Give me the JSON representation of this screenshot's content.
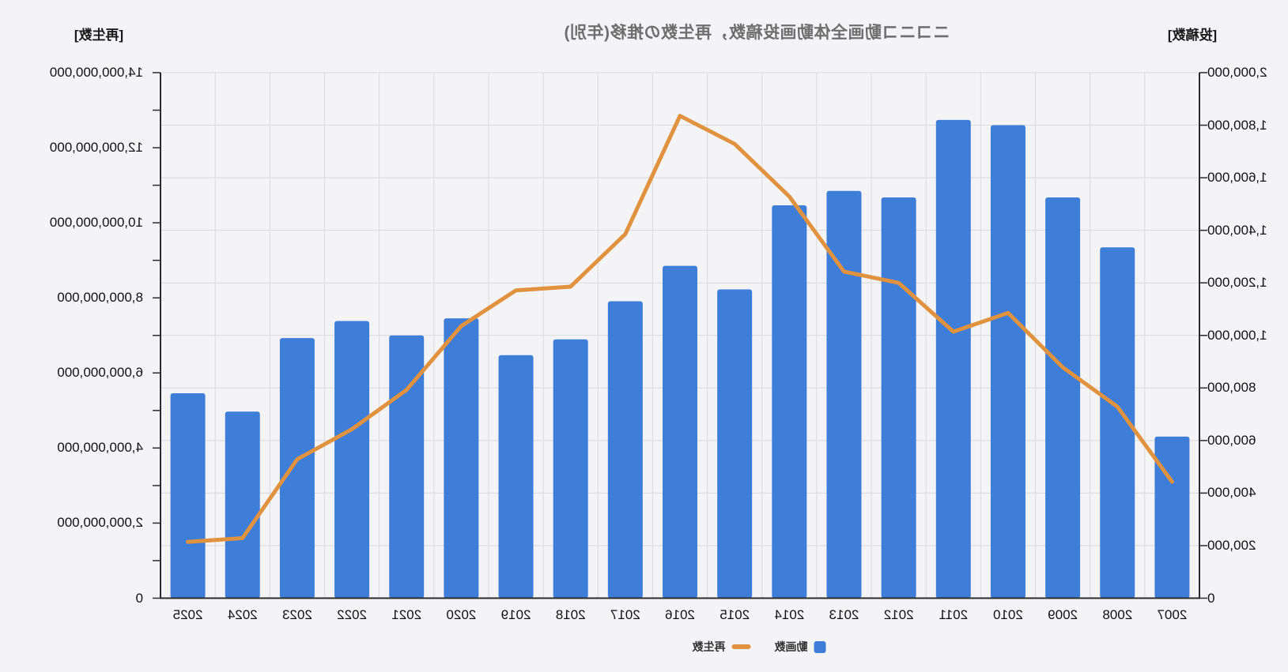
{
  "chart": {
    "title": "ニコニコ動画全体動画投稿数，再生数の推移(年別)",
    "legend": [
      {
        "label": "動画数",
        "swatch": "bar-square",
        "color": "#3E7DD8"
      },
      {
        "label": "再生数",
        "swatch": "line-dash",
        "color": "#E0923F"
      }
    ]
  },
  "chart_data": {
    "type": "bar+line",
    "title": "ニコニコ動画全体動画投稿数，再生数の推移(年別)",
    "categories": [
      "2007",
      "2008",
      "2009",
      "2010",
      "2011",
      "2012",
      "2013",
      "2014",
      "2015",
      "2016",
      "2017",
      "2018",
      "2019",
      "2020",
      "2021",
      "2022",
      "2023",
      "2024",
      "2025"
    ],
    "series": [
      {
        "name": "動画数",
        "type": "bar",
        "axis": "posts",
        "color": "#3E7DD8",
        "values": [
          615000,
          1335000,
          1525000,
          1800000,
          1820000,
          1525000,
          1550000,
          1495000,
          1175000,
          1265000,
          1130000,
          985000,
          925000,
          1065000,
          1000000,
          1055000,
          990000,
          710000,
          780000
        ]
      },
      {
        "name": "再生数",
        "type": "line",
        "axis": "views",
        "color": "#E0923F",
        "values": [
          3100000000,
          5100000000,
          6150000000,
          7600000000,
          7100000000,
          8400000000,
          8700000000,
          10700000000,
          12100000000,
          12850000000,
          9700000000,
          8300000000,
          8200000000,
          7250000000,
          5550000000,
          4500000000,
          3700000000,
          1600000000,
          1500000000
        ]
      }
    ],
    "posts_axis": {
      "name": "[投稿数]",
      "min": 0,
      "max": 2000000,
      "step": 200000,
      "ticks": [
        "0",
        "200,000",
        "400,000",
        "600,000",
        "800,000",
        "1,000,000",
        "1,200,000",
        "1,400,000",
        "1,600,000",
        "1,800,000",
        "2,000,000"
      ]
    },
    "views_axis": {
      "name": "[再生数]",
      "min": 0,
      "max": 14000000000,
      "step": 2000000000,
      "minor_tick_step": 1000000000,
      "ticks": [
        "0",
        "2,000,000,000",
        "4,000,000,000",
        "6,000,000,000",
        "8,000,000,000",
        "10,000,000,000",
        "12,000,000,000",
        "14,000,000,000"
      ]
    },
    "grid": {
      "horizontal": "posts-axis-steps",
      "vertical": "category-boundaries",
      "color": "#dadada"
    },
    "legend_position": "bottom-center",
    "background": "#f4f4f6",
    "mirrored": true
  }
}
